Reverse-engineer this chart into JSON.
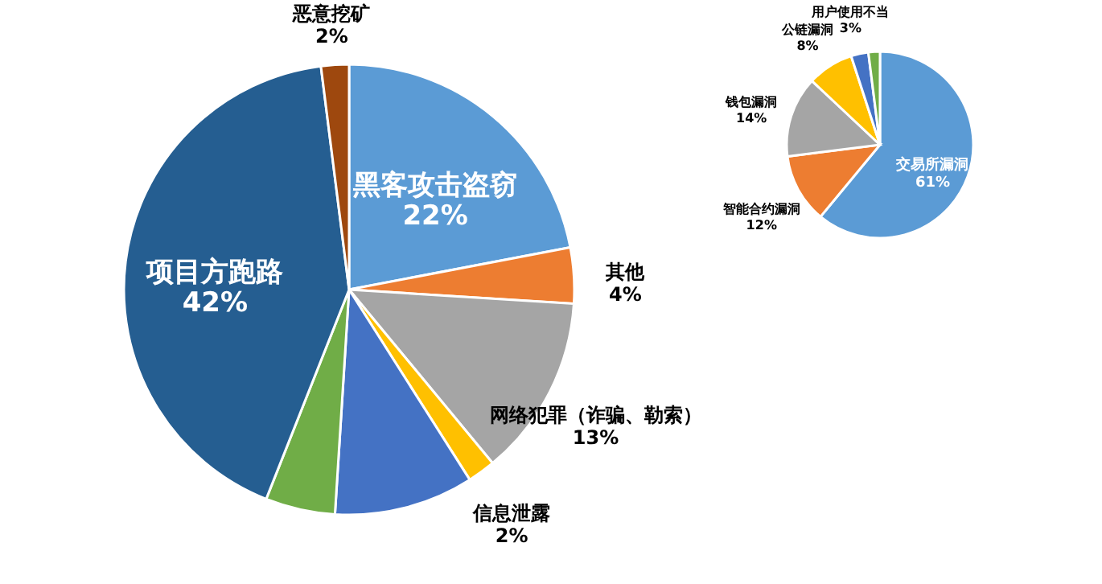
{
  "chart_data": [
    {
      "type": "pie",
      "categories": [
        "黑客攻击盗窃",
        "其他",
        "网络犯罪（诈骗、勒索）",
        "信息泄露",
        null,
        null,
        "项目方跑路",
        "恶意挖矿"
      ],
      "values": [
        22,
        4,
        13,
        2,
        10,
        5,
        42,
        2
      ],
      "value_labels": [
        "22%",
        "4%",
        "13%",
        "2%",
        null,
        null,
        "42%",
        "2%"
      ],
      "colors": [
        "#5b9bd5",
        "#ed7d31",
        "#a5a5a5",
        "#ffc000",
        "#4472c4",
        "#70ad47",
        "#255e91",
        "#9e480e"
      ]
    },
    {
      "type": "pie",
      "categories": [
        "交易所漏洞",
        "智能合约漏洞",
        "钱包漏洞",
        "公链漏洞",
        "用户使用不当",
        null
      ],
      "values": [
        61,
        12,
        14,
        8,
        3,
        2
      ],
      "value_labels": [
        "61%",
        "12%",
        "14%",
        "8%",
        "3%",
        null
      ],
      "colors": [
        "#5b9bd5",
        "#ed7d31",
        "#a5a5a5",
        "#ffc000",
        "#4472c4",
        "#70ad47"
      ]
    }
  ]
}
